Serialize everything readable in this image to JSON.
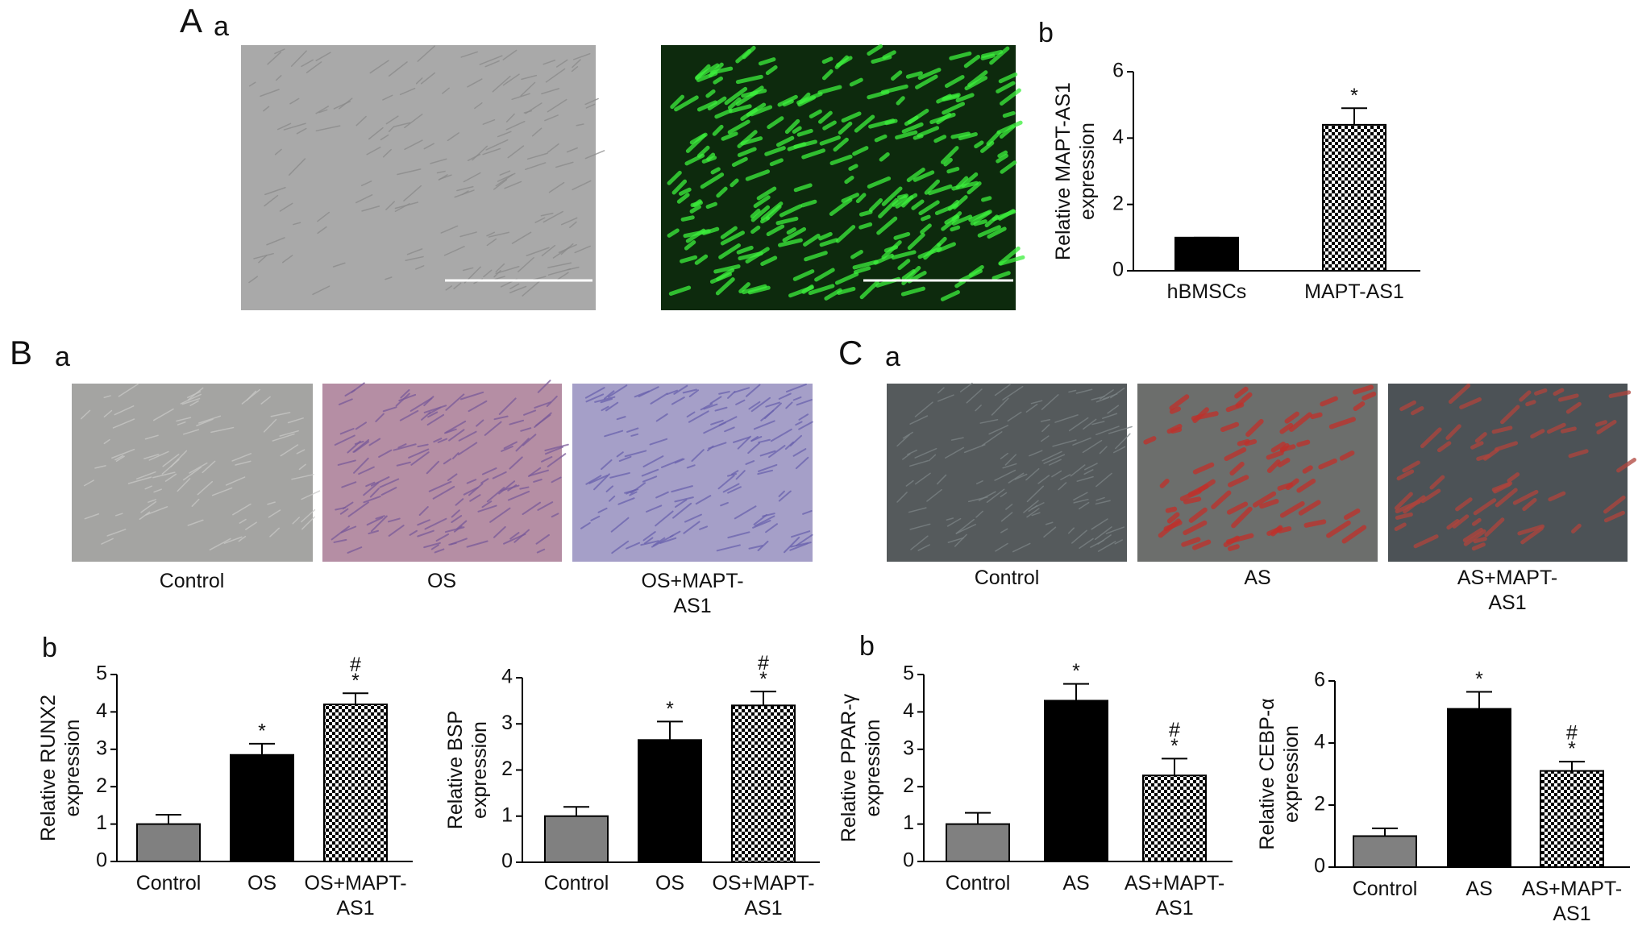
{
  "panel_labels": {
    "A": "A",
    "Aa": "a",
    "Ab": "b",
    "B": "B",
    "Ba": "a",
    "Bb": "b",
    "C": "C",
    "Ca": "a",
    "Cb": "b"
  },
  "micrograph_captions": {
    "B": [
      "Control",
      "OS",
      "OS+MAPT-AS1"
    ],
    "C": [
      "Control",
      "AS",
      "AS+MAPT-AS1"
    ]
  },
  "chart_data": [
    {
      "type": "bar",
      "ylabel": [
        "Relative MAPT-AS1",
        "expression"
      ],
      "categories": [
        "hBMSCs",
        "MAPT-AS1"
      ],
      "values": [
        1,
        4.4
      ],
      "errors": [
        0,
        0.5
      ],
      "colors": [
        "#000000",
        "#000000"
      ],
      "hatch": [
        false,
        true
      ],
      "annotations": [
        null,
        [
          "*"
        ]
      ],
      "ylim": [
        0,
        6
      ],
      "yticks": [
        0,
        2,
        4,
        6
      ]
    },
    {
      "type": "bar",
      "ylabel": [
        "Relative RUNX2",
        "expression"
      ],
      "categories": [
        "Control",
        "OS",
        "OS+MAPT-AS1"
      ],
      "values": [
        1,
        2.85,
        4.2
      ],
      "errors": [
        0.25,
        0.3,
        0.3
      ],
      "colors": [
        "#808080",
        "#000000",
        "#000000"
      ],
      "hatch": [
        false,
        false,
        true
      ],
      "annotations": [
        null,
        [
          "*"
        ],
        [
          "#",
          "*"
        ]
      ],
      "ylim": [
        0,
        5
      ],
      "yticks": [
        0,
        1,
        2,
        3,
        4,
        5
      ]
    },
    {
      "type": "bar",
      "ylabel": [
        "Relative BSP",
        "expression"
      ],
      "categories": [
        "Control",
        "OS",
        "OS+MAPT-AS1"
      ],
      "values": [
        1,
        2.65,
        3.4
      ],
      "errors": [
        0.2,
        0.4,
        0.3
      ],
      "colors": [
        "#808080",
        "#000000",
        "#000000"
      ],
      "hatch": [
        false,
        false,
        true
      ],
      "annotations": [
        null,
        [
          "*"
        ],
        [
          "#",
          "*"
        ]
      ],
      "ylim": [
        0,
        4
      ],
      "yticks": [
        0,
        1,
        2,
        3,
        4
      ]
    },
    {
      "type": "bar",
      "ylabel": [
        "Relative PPAR-γ",
        "expression"
      ],
      "categories": [
        "Control",
        "AS",
        "AS+MAPT-AS1"
      ],
      "values": [
        1,
        4.3,
        2.3
      ],
      "errors": [
        0.3,
        0.45,
        0.45
      ],
      "colors": [
        "#808080",
        "#000000",
        "#000000"
      ],
      "hatch": [
        false,
        false,
        true
      ],
      "annotations": [
        null,
        [
          "*"
        ],
        [
          "#",
          "*"
        ]
      ],
      "ylim": [
        0,
        5
      ],
      "yticks": [
        0,
        1,
        2,
        3,
        4,
        5
      ]
    },
    {
      "type": "bar",
      "ylabel": [
        "Relative CEBP-α",
        "expression"
      ],
      "categories": [
        "Control",
        "AS",
        "AS+MAPT-AS1"
      ],
      "values": [
        1,
        5.1,
        3.1
      ],
      "errors": [
        0.25,
        0.55,
        0.3
      ],
      "colors": [
        "#808080",
        "#000000",
        "#000000"
      ],
      "hatch": [
        false,
        false,
        true
      ],
      "annotations": [
        null,
        [
          "*"
        ],
        [
          "#",
          "*"
        ]
      ],
      "ylim": [
        0,
        6
      ],
      "yticks": [
        0,
        2,
        4,
        6
      ]
    }
  ]
}
